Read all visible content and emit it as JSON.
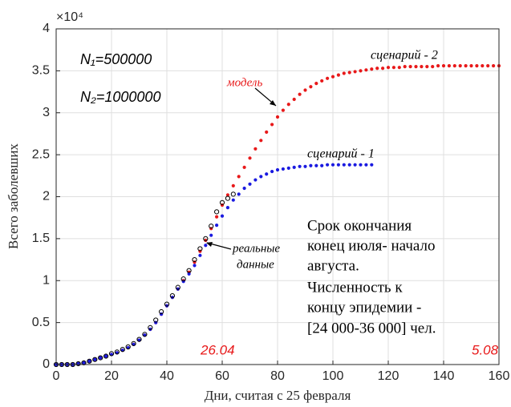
{
  "chart_data": {
    "type": "scatter",
    "x_label": "Дни, считая с 25 февраля",
    "y_label": "Всего заболевших",
    "y_multiplier": "×10⁴",
    "xlim": [
      0,
      160
    ],
    "xticks": [
      0,
      20,
      40,
      60,
      80,
      100,
      120,
      140,
      160
    ],
    "ylim": [
      0,
      4
    ],
    "yticks": [
      0,
      0.5,
      1,
      1.5,
      2,
      2.5,
      3,
      3.5,
      4
    ],
    "grid": true,
    "annotations": {
      "n1": "N₁=500000",
      "n2": "N₂=1000000",
      "model": "модель",
      "scenario2": "сценарий - 2",
      "scenario1": "сценарий - 1",
      "real": [
        "реальные",
        "данные"
      ],
      "note": [
        "Срок окончания",
        "конец июля- начало",
        "августа.",
        "Численность к",
        "концу эпидемии -",
        "[24 000-36 000] чел."
      ],
      "date1": "26.04",
      "date2": "5.08"
    },
    "series": [
      {
        "name": "сценарий - 2",
        "color": "#e8191a",
        "style": "dot",
        "x": [
          0,
          2,
          4,
          6,
          8,
          10,
          12,
          14,
          16,
          18,
          20,
          22,
          24,
          26,
          28,
          30,
          32,
          34,
          36,
          38,
          40,
          42,
          44,
          46,
          48,
          50,
          52,
          54,
          56,
          58,
          60,
          62,
          64,
          66,
          68,
          70,
          72,
          74,
          76,
          78,
          80,
          82,
          84,
          86,
          88,
          90,
          92,
          94,
          96,
          98,
          100,
          102,
          104,
          106,
          108,
          110,
          112,
          114,
          116,
          118,
          120,
          122,
          124,
          126,
          128,
          130,
          132,
          134,
          136,
          138,
          140,
          142,
          144,
          146,
          148,
          150,
          152,
          154,
          156,
          158,
          160
        ],
        "values": [
          0,
          0,
          0,
          0,
          0.01,
          0.02,
          0.04,
          0.06,
          0.08,
          0.1,
          0.12,
          0.14,
          0.17,
          0.2,
          0.24,
          0.29,
          0.35,
          0.42,
          0.5,
          0.6,
          0.7,
          0.8,
          0.9,
          1.0,
          1.1,
          1.22,
          1.35,
          1.48,
          1.62,
          1.76,
          1.9,
          2.02,
          2.13,
          2.24,
          2.35,
          2.46,
          2.57,
          2.67,
          2.77,
          2.86,
          2.95,
          3.03,
          3.1,
          3.16,
          3.22,
          3.27,
          3.31,
          3.35,
          3.38,
          3.41,
          3.43,
          3.45,
          3.47,
          3.48,
          3.49,
          3.5,
          3.51,
          3.52,
          3.53,
          3.53,
          3.54,
          3.54,
          3.54,
          3.55,
          3.55,
          3.55,
          3.55,
          3.55,
          3.55,
          3.56,
          3.56,
          3.56,
          3.56,
          3.56,
          3.56,
          3.56,
          3.56,
          3.56,
          3.56,
          3.56,
          3.56
        ]
      },
      {
        "name": "сценарий - 1",
        "color": "#1a1ae0",
        "style": "dot",
        "x": [
          0,
          2,
          4,
          6,
          8,
          10,
          12,
          14,
          16,
          18,
          20,
          22,
          24,
          26,
          28,
          30,
          32,
          34,
          36,
          38,
          40,
          42,
          44,
          46,
          48,
          50,
          52,
          54,
          56,
          58,
          60,
          62,
          64,
          66,
          68,
          70,
          72,
          74,
          76,
          78,
          80,
          82,
          84,
          86,
          88,
          90,
          92,
          94,
          96,
          98,
          100,
          102,
          104,
          106,
          108,
          110,
          112,
          114
        ],
        "values": [
          0,
          0,
          0,
          0,
          0.01,
          0.02,
          0.04,
          0.06,
          0.08,
          0.1,
          0.12,
          0.14,
          0.17,
          0.2,
          0.24,
          0.29,
          0.35,
          0.42,
          0.5,
          0.6,
          0.7,
          0.8,
          0.9,
          0.99,
          1.08,
          1.18,
          1.3,
          1.42,
          1.54,
          1.66,
          1.77,
          1.87,
          1.96,
          2.03,
          2.1,
          2.15,
          2.2,
          2.24,
          2.27,
          2.3,
          2.32,
          2.33,
          2.34,
          2.35,
          2.36,
          2.36,
          2.37,
          2.37,
          2.37,
          2.38,
          2.38,
          2.38,
          2.38,
          2.38,
          2.38,
          2.38,
          2.38,
          2.38
        ]
      },
      {
        "name": "реальные данные",
        "color": "#000000",
        "style": "ring",
        "x": [
          0,
          2,
          4,
          6,
          8,
          10,
          12,
          14,
          16,
          18,
          20,
          22,
          24,
          26,
          28,
          30,
          32,
          34,
          36,
          38,
          40,
          42,
          44,
          46,
          48,
          50,
          52,
          54,
          56,
          58,
          60,
          62,
          64
        ],
        "values": [
          0,
          0,
          0,
          0,
          0.01,
          0.02,
          0.04,
          0.06,
          0.08,
          0.1,
          0.13,
          0.15,
          0.18,
          0.21,
          0.25,
          0.3,
          0.36,
          0.44,
          0.53,
          0.63,
          0.72,
          0.82,
          0.92,
          1.02,
          1.12,
          1.25,
          1.38,
          1.5,
          1.65,
          1.82,
          1.93,
          1.98,
          2.03
        ]
      }
    ]
  }
}
